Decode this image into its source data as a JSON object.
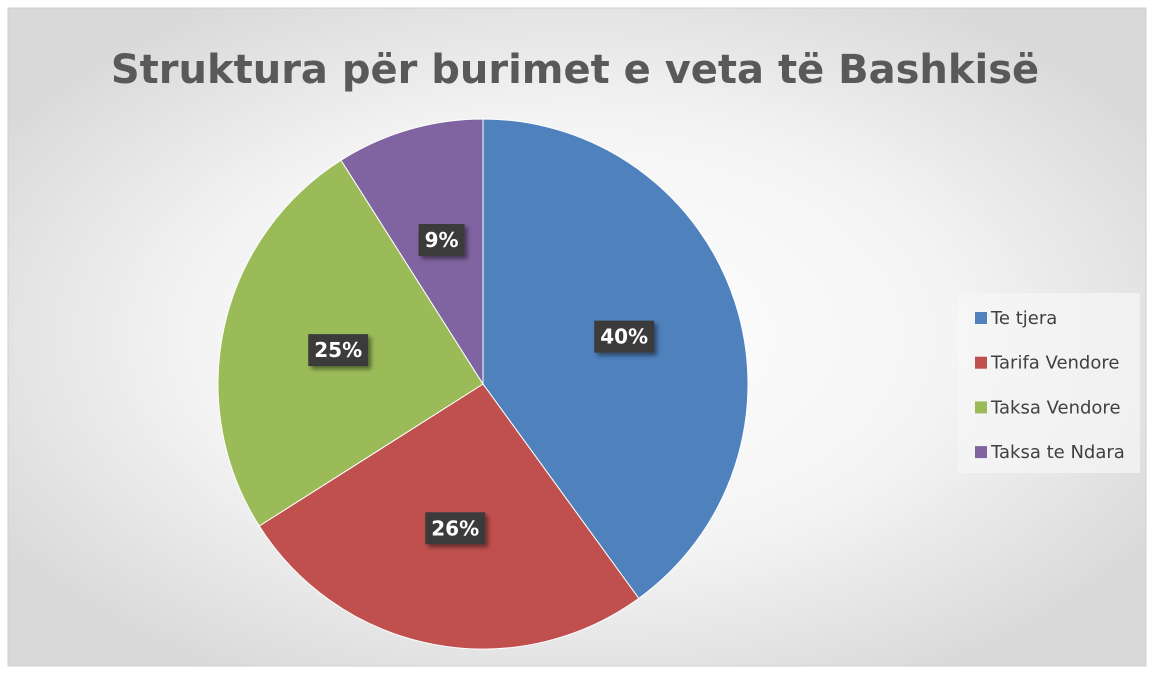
{
  "chart_data": {
    "type": "pie",
    "title": "Struktura për burimet  e veta të Bashkisë",
    "categories": [
      "Te tjera",
      "Tarifa Vendore",
      "Taksa Vendore",
      "Taksa te Ndara"
    ],
    "values": [
      40,
      26,
      25,
      9
    ],
    "value_labels": [
      "40%",
      "26%",
      "25%",
      "9%"
    ],
    "colors": [
      "#4f81bd",
      "#c0504d",
      "#9bbb59",
      "#8064a2"
    ],
    "legend": "right"
  }
}
